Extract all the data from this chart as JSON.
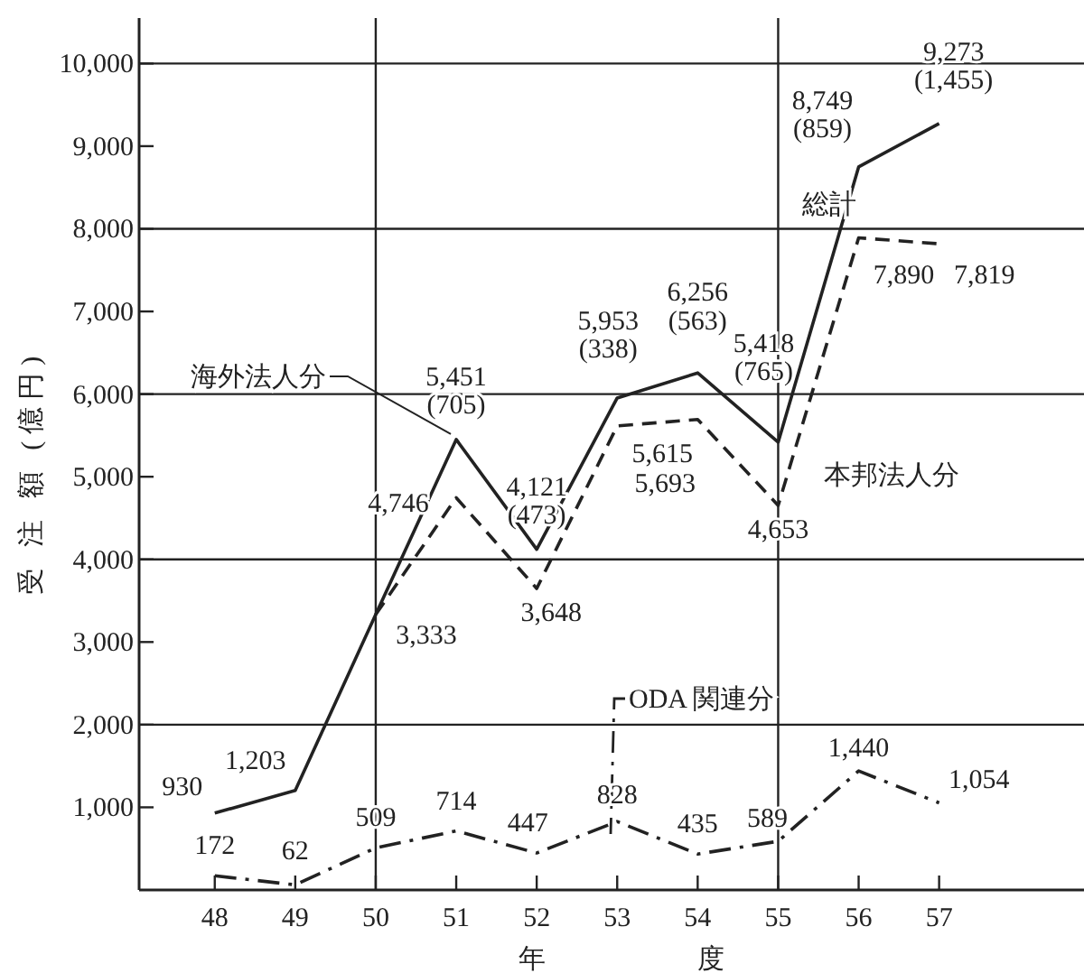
{
  "chart_data": {
    "type": "line",
    "xlabel": "年 度",
    "ylabel": "受 注 額 (億円)",
    "x": [
      48,
      49,
      50,
      51,
      52,
      53,
      54,
      55,
      56,
      57
    ],
    "xlim": [
      47.06,
      58.8
    ],
    "ylim": [
      0,
      10550
    ],
    "xticks": [
      48,
      49,
      50,
      51,
      52,
      53,
      54,
      55,
      56,
      57
    ],
    "yticks": [
      {
        "value": 1000,
        "label": "1,000"
      },
      {
        "value": 2000,
        "label": "2,000"
      },
      {
        "value": 3000,
        "label": "3,000"
      },
      {
        "value": 4000,
        "label": "4,000"
      },
      {
        "value": 5000,
        "label": "5,000"
      },
      {
        "value": 6000,
        "label": "6,000"
      },
      {
        "value": 7000,
        "label": "7,000"
      },
      {
        "value": 8000,
        "label": "8,000"
      },
      {
        "value": 9000,
        "label": "9,000"
      },
      {
        "value": 10000,
        "label": "10,000"
      }
    ],
    "ref_lines": [
      {
        "axis": "y",
        "value": 2000
      },
      {
        "axis": "y",
        "value": 4000
      },
      {
        "axis": "y",
        "value": 6000
      },
      {
        "axis": "y",
        "value": 8000
      },
      {
        "axis": "y",
        "value": 10000
      },
      {
        "axis": "x",
        "value": 50
      },
      {
        "axis": "x",
        "value": 55
      }
    ],
    "series": [
      {
        "name": "総計",
        "color": "#222222",
        "line_style": "solid",
        "values": [
          930,
          1203,
          3333,
          5451,
          4121,
          5953,
          6256,
          5418,
          8749,
          9273
        ],
        "value_labels": [
          "930",
          "1,203",
          "3,333",
          "5,451\n(705)",
          "4,121\n(473)",
          "5,953\n(338)",
          "6,256\n(563)",
          "5,418\n(765)",
          "8,749\n(859)",
          "9,273\n(1,455)"
        ]
      },
      {
        "name": "本邦法人分",
        "color": "#222222",
        "line_style": "dashed",
        "values": [
          null,
          null,
          3333,
          4746,
          3648,
          5615,
          5693,
          4653,
          7890,
          7819
        ],
        "value_labels": [
          null,
          null,
          null,
          "4,746",
          "3,648",
          "5,615",
          "5,693",
          "4,653",
          "7,890",
          "7,819"
        ]
      },
      {
        "name": "ODA 関連分",
        "color": "#222222",
        "line_style": "dashdot",
        "values": [
          172,
          62,
          509,
          714,
          447,
          828,
          435,
          589,
          1440,
          1054
        ],
        "value_labels": [
          "172",
          "62",
          "509",
          "714",
          "447",
          "828",
          "435",
          "589",
          "1,440",
          "1,054"
        ]
      }
    ],
    "annotations": [
      {
        "text": "海外法人分",
        "x": 51,
        "y": 5451
      }
    ]
  }
}
